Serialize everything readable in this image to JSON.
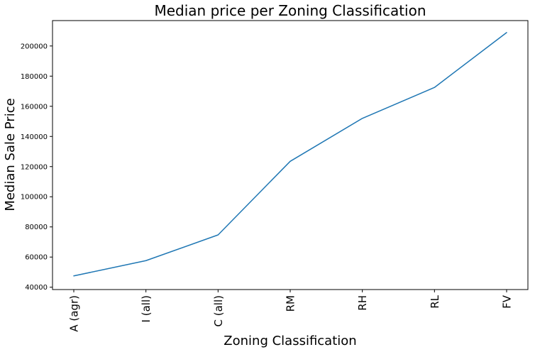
{
  "chart_data": {
    "type": "line",
    "title": "Median price per Zoning Classification",
    "xlabel": "Zoning Classification",
    "ylabel": "Median Sale Price",
    "categories": [
      "A (agr)",
      "I (all)",
      "C (all)",
      "RM",
      "RH",
      "RL",
      "FV"
    ],
    "series": [
      {
        "values": [
          47500,
          57625,
          74700,
          123500,
          152000,
          172500,
          208900
        ],
        "color": "#1f77b4"
      }
    ],
    "yticks": [
      40000,
      60000,
      80000,
      100000,
      120000,
      140000,
      160000,
      180000,
      200000
    ],
    "ylim": [
      38450,
      216850
    ],
    "grid": false,
    "legend": "none"
  }
}
